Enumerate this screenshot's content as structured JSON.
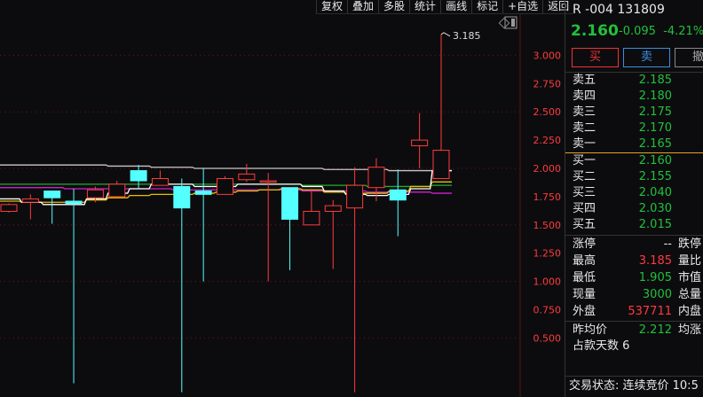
{
  "toolbar": [
    "复权",
    "叠加",
    "多股",
    "统计",
    "画线",
    "标记",
    "+自选",
    "返回"
  ],
  "colors": {
    "up": "#ff3b3b",
    "down": "#54ffff",
    "grid": "#7a0f0f",
    "axis": "#ff3b3b",
    "green": "#22c13a"
  },
  "icons": [
    "diamond-icon",
    "panel-toggle-icon"
  ],
  "chart_data": {
    "type": "candlestick",
    "y_ticks": [
      "3.000",
      "2.750",
      "2.500",
      "2.250",
      "2.000",
      "1.750",
      "1.500",
      "1.250",
      "1.000",
      "0.750",
      "0.500"
    ],
    "high_label": "3.185",
    "candles": [
      {
        "o": 1.62,
        "h": 1.69,
        "l": 1.61,
        "c": 1.68
      },
      {
        "o": 1.7,
        "h": 1.77,
        "l": 1.55,
        "c": 1.73
      },
      {
        "o": 1.8,
        "h": 1.8,
        "l": 1.51,
        "c": 1.74
      },
      {
        "o": 1.71,
        "h": 1.82,
        "l": 0.1,
        "c": 1.69
      },
      {
        "o": 1.74,
        "h": 1.84,
        "l": 1.7,
        "c": 1.81
      },
      {
        "o": 1.75,
        "h": 1.89,
        "l": 1.75,
        "c": 1.86
      },
      {
        "o": 1.98,
        "h": 2.03,
        "l": 1.82,
        "c": 1.89
      },
      {
        "o": 1.85,
        "h": 1.98,
        "l": 1.85,
        "c": 1.91
      },
      {
        "o": 1.84,
        "h": 1.91,
        "l": 0.02,
        "c": 1.65
      },
      {
        "o": 1.8,
        "h": 2.0,
        "l": 1.0,
        "c": 1.77
      },
      {
        "o": 1.77,
        "h": 1.93,
        "l": 1.77,
        "c": 1.91
      },
      {
        "o": 1.9,
        "h": 2.04,
        "l": 1.88,
        "c": 1.95
      },
      {
        "o": 1.88,
        "h": 1.96,
        "l": 1.0,
        "c": 1.89
      },
      {
        "o": 1.83,
        "h": 1.83,
        "l": 1.1,
        "c": 1.55
      },
      {
        "o": 1.5,
        "h": 1.82,
        "l": 1.5,
        "c": 1.62
      },
      {
        "o": 1.62,
        "h": 1.72,
        "l": 1.11,
        "c": 1.67
      },
      {
        "o": 1.65,
        "h": 2.01,
        "l": 0.02,
        "c": 1.85
      },
      {
        "o": 1.83,
        "h": 2.09,
        "l": 1.71,
        "c": 2.01
      },
      {
        "o": 1.81,
        "h": 1.99,
        "l": 1.4,
        "c": 1.72
      },
      {
        "o": 2.2,
        "h": 2.49,
        "l": 2.0,
        "c": 2.25
      },
      {
        "o": 1.91,
        "h": 3.185,
        "l": 1.91,
        "c": 2.16
      }
    ],
    "ma": [
      {
        "color": "#c8c8c8",
        "values": [
          2.03,
          2.03,
          2.03,
          2.03,
          2.03,
          2.02,
          2.02,
          2.01,
          2.01,
          2.0,
          2.0,
          2.0,
          2.0,
          2.0,
          2.0,
          1.99,
          1.99,
          1.99,
          1.98,
          1.98,
          1.98
        ]
      },
      {
        "color": "#1fae2f",
        "values": [
          1.86,
          1.86,
          1.86,
          1.86,
          1.86,
          1.86,
          1.86,
          1.86,
          1.86,
          1.86,
          1.86,
          1.86,
          1.86,
          1.86,
          1.85,
          1.85,
          1.85,
          1.84,
          1.84,
          1.84,
          1.85
        ]
      },
      {
        "color": "#d020d0",
        "values": [
          1.83,
          1.83,
          1.83,
          1.82,
          1.82,
          1.82,
          1.82,
          1.82,
          1.81,
          1.81,
          1.81,
          1.81,
          1.81,
          1.81,
          1.8,
          1.8,
          1.8,
          1.79,
          1.79,
          1.79,
          1.78
        ]
      },
      {
        "color": "#e8c000",
        "values": [
          1.71,
          1.7,
          1.7,
          1.7,
          1.72,
          1.74,
          1.76,
          1.77,
          1.77,
          1.78,
          1.79,
          1.8,
          1.81,
          1.82,
          1.81,
          1.79,
          1.78,
          1.78,
          1.8,
          1.84,
          1.88
        ]
      },
      {
        "color": "#ffffff",
        "values": [
          1.73,
          1.7,
          1.68,
          1.68,
          1.73,
          1.78,
          1.82,
          1.86,
          1.86,
          1.84,
          1.84,
          1.86,
          1.86,
          1.86,
          1.84,
          1.8,
          1.77,
          1.76,
          1.77,
          1.82,
          1.98
        ]
      }
    ]
  },
  "quote": {
    "title": "R -004 131809",
    "price": "2.160",
    "change": "-0.095",
    "pct": "-4.21%",
    "buy": "买",
    "sell": "卖",
    "cancel": "撤"
  },
  "asks": [
    {
      "label": "卖五",
      "price": "2.185"
    },
    {
      "label": "卖四",
      "price": "2.180"
    },
    {
      "label": "卖三",
      "price": "2.175"
    },
    {
      "label": "卖二",
      "price": "2.170"
    },
    {
      "label": "卖一",
      "price": "2.165"
    }
  ],
  "bids": [
    {
      "label": "买一",
      "price": "2.160"
    },
    {
      "label": "买二",
      "price": "2.155"
    },
    {
      "label": "买三",
      "price": "2.040"
    },
    {
      "label": "买四",
      "price": "2.030"
    },
    {
      "label": "买五",
      "price": "2.015"
    }
  ],
  "stats": [
    {
      "label": "涨停",
      "value": "--",
      "right": "跌停",
      "color": "#e8e8e8"
    },
    {
      "label": "最高",
      "value": "3.185",
      "right": "量比",
      "color": "#ff3b3b"
    },
    {
      "label": "最低",
      "value": "1.905",
      "right": "市值",
      "color": "#22c13a"
    },
    {
      "label": "现量",
      "value": "3000",
      "right": "总量",
      "color": "#22c13a"
    },
    {
      "label": "外盘",
      "value": "537711",
      "right": "内盘",
      "color": "#ff3b3b"
    }
  ],
  "avg": {
    "label": "昨均价",
    "value": "2.212",
    "right": "均涨"
  },
  "days": "占款天数 6",
  "status": "交易状态: 连续竞价 10:5"
}
